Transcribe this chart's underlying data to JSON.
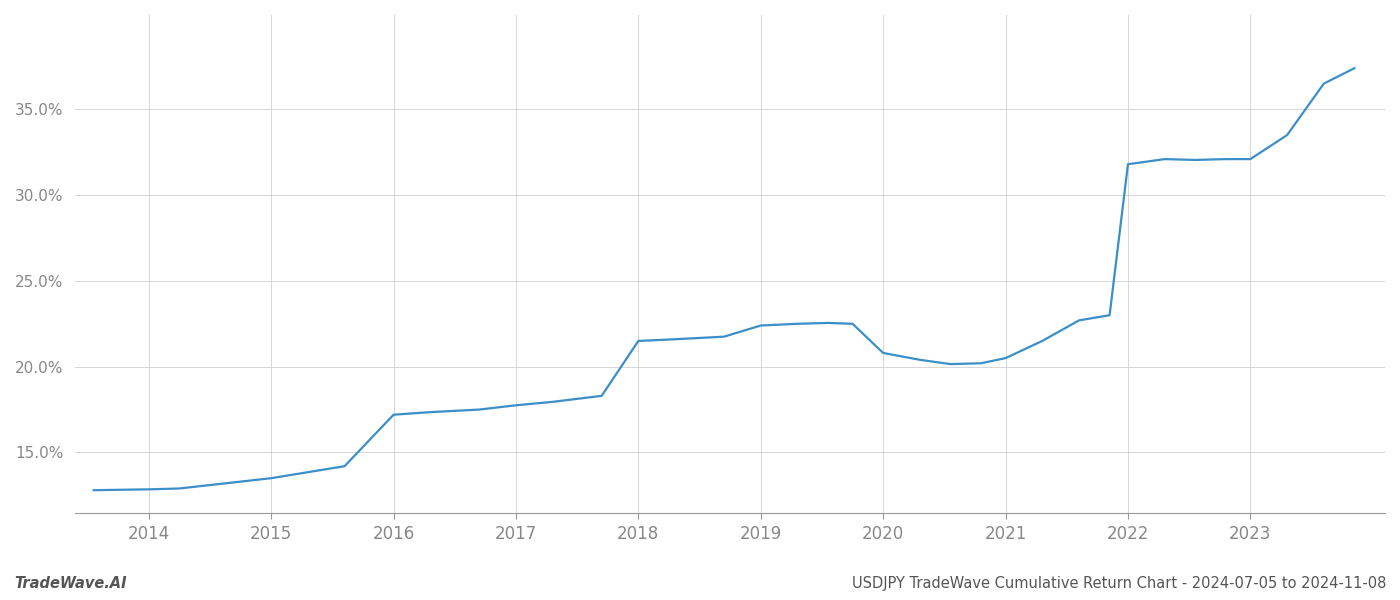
{
  "x_values": [
    2013.55,
    2014.0,
    2014.25,
    2015.0,
    2015.6,
    2016.0,
    2016.3,
    2016.7,
    2017.0,
    2017.3,
    2017.7,
    2018.0,
    2018.3,
    2018.7,
    2019.0,
    2019.3,
    2019.55,
    2019.75,
    2020.0,
    2020.3,
    2020.55,
    2020.8,
    2021.0,
    2021.3,
    2021.6,
    2021.85,
    2022.0,
    2022.3,
    2022.55,
    2022.8,
    2023.0,
    2023.3,
    2023.6,
    2023.85
  ],
  "y_values": [
    12.8,
    12.85,
    12.9,
    13.5,
    14.2,
    17.2,
    17.35,
    17.5,
    17.75,
    17.95,
    18.3,
    21.5,
    21.6,
    21.75,
    22.4,
    22.5,
    22.55,
    22.5,
    20.8,
    20.4,
    20.15,
    20.2,
    20.5,
    21.5,
    22.7,
    23.0,
    31.8,
    32.1,
    32.05,
    32.1,
    32.1,
    33.5,
    36.5,
    37.4
  ],
  "line_color": "#3b8fc8",
  "line_width": 1.6,
  "background_color": "#ffffff",
  "grid_color": "#d0d0d0",
  "title": "USDJPY TradeWave Cumulative Return Chart - 2024-07-05 to 2024-11-08",
  "watermark": "TradeWave.AI",
  "xlim": [
    2013.4,
    2024.1
  ],
  "ylim": [
    11.5,
    40.5
  ],
  "ytick_positions": [
    15.0,
    20.0,
    25.0,
    30.0,
    35.0
  ],
  "ytick_labels": [
    "15.0%",
    "20.0%",
    "25.0%",
    "30.0%",
    "35.0%"
  ],
  "xtick_years": [
    2014,
    2015,
    2016,
    2017,
    2018,
    2019,
    2020,
    2021,
    2022,
    2023
  ],
  "spine_color": "#999999",
  "tick_color": "#888888",
  "title_color": "#555555",
  "watermark_color": "#555555",
  "title_fontsize": 10.5,
  "watermark_fontsize": 10.5,
  "tick_fontsize": 12,
  "ytick_fontsize": 11
}
